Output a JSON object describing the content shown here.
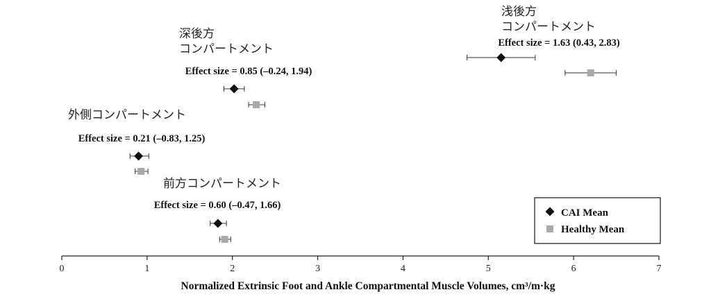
{
  "chart_data": {
    "type": "scatter",
    "title": "",
    "xlabel": "Normalized Extrinsic Foot and Ankle Compartmental Muscle Volumes, cm³/m·kg",
    "ylabel": "",
    "xlim": [
      0,
      7
    ],
    "x_ticks": [
      "0",
      "1",
      "2",
      "3",
      "4",
      "5",
      "6",
      "7"
    ],
    "grid": false,
    "legend_position": "bottom-right",
    "series": [
      {
        "name": "CAI Mean",
        "marker": "diamond",
        "color": "#111111"
      },
      {
        "name": "Healthy Mean",
        "marker": "square",
        "color": "#a9a9a9"
      }
    ],
    "groups": [
      {
        "label": "浅後方\nコンパートメント",
        "effect_size": "Effect size = 1.63 (0.43, 2.83)",
        "cai": {
          "mean": 5.15,
          "ci": [
            4.75,
            5.55
          ]
        },
        "healthy": {
          "mean": 6.2,
          "ci": [
            5.9,
            6.5
          ]
        }
      },
      {
        "label": "深後方\nコンパートメント",
        "effect_size": "Effect size = 0.85 (–0.24, 1.94)",
        "cai": {
          "mean": 2.02,
          "ci": [
            1.9,
            2.14
          ]
        },
        "healthy": {
          "mean": 2.28,
          "ci": [
            2.19,
            2.38
          ]
        }
      },
      {
        "label": "外側コンパートメント",
        "effect_size": "Effect size = 0.21 (–0.83, 1.25)",
        "cai": {
          "mean": 0.9,
          "ci": [
            0.8,
            1.02
          ]
        },
        "healthy": {
          "mean": 0.93,
          "ci": [
            0.86,
            1.01
          ]
        }
      },
      {
        "label": "前方コンパートメント",
        "effect_size": "Effect size = 0.60 (–0.47, 1.66)",
        "cai": {
          "mean": 1.83,
          "ci": [
            1.74,
            1.93
          ]
        },
        "healthy": {
          "mean": 1.91,
          "ci": [
            1.85,
            1.98
          ]
        }
      }
    ]
  }
}
